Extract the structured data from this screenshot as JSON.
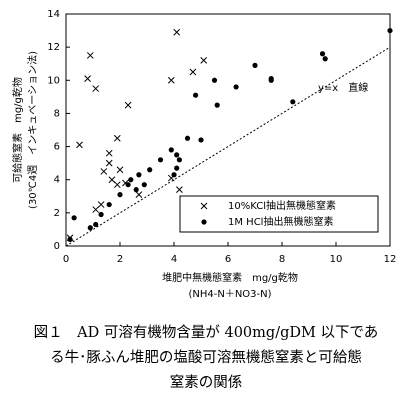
{
  "chart_data": {
    "type": "scatter",
    "xlabel": [
      "堆肥中無機態窒素　mg/g乾物",
      "(NH4-N＋NO3-N)"
    ],
    "ylabel": [
      "可給態窒素　mg/g乾物",
      "(30℃4週　インキュベーション法)"
    ],
    "annotation": "y=x　直線",
    "reference_line": "y=x",
    "xlim": [
      0,
      12
    ],
    "ylim": [
      0,
      14
    ],
    "xticks": [
      0,
      2,
      4,
      6,
      8,
      10,
      12
    ],
    "yticks": [
      0,
      2,
      4,
      6,
      8,
      10,
      12,
      14
    ],
    "legend": "lower right",
    "series": [
      {
        "name": "10%KCl抽出無機態窒素",
        "marker": "x",
        "color": "#000000",
        "x": [
          0.9,
          0.8,
          1.1,
          0.5,
          2.3,
          4.1,
          3.9,
          4.7,
          5.1,
          1.9,
          1.6,
          1.6,
          1.4,
          1.7,
          2.0,
          1.9,
          2.2,
          1.3,
          1.1,
          2.7,
          4.2,
          0.15,
          3.9
        ],
        "values": [
          11.5,
          10.1,
          9.5,
          6.1,
          8.5,
          12.9,
          10.0,
          10.5,
          11.2,
          6.5,
          5.6,
          5.0,
          4.5,
          4.0,
          4.6,
          3.7,
          3.8,
          2.5,
          2.2,
          3.1,
          3.4,
          0.5,
          4.1
        ]
      },
      {
        "name": "1M HCl抽出無機態窒素",
        "marker": "o",
        "color": "#000000",
        "x": [
          5.5,
          6.3,
          4.8,
          5.6,
          7.0,
          7.6,
          7.6,
          9.5,
          9.6,
          12.0,
          8.4,
          4.5,
          3.9,
          4.1,
          4.2,
          4.1,
          3.5,
          3.1,
          2.7,
          2.3,
          2.4,
          2.6,
          2.9,
          2.0,
          1.6,
          1.3,
          1.1,
          0.3,
          0.15,
          0.9,
          4.0,
          5.0
        ],
        "values": [
          10.0,
          9.6,
          9.1,
          8.5,
          10.9,
          10.1,
          10.0,
          11.6,
          11.3,
          13.0,
          8.7,
          6.5,
          5.8,
          5.5,
          5.2,
          4.7,
          5.2,
          4.6,
          4.3,
          3.7,
          4.0,
          3.4,
          3.7,
          3.1,
          2.5,
          1.9,
          1.3,
          1.7,
          0.4,
          1.1,
          4.3,
          6.4
        ]
      }
    ]
  },
  "caption": [
    "図１　AD 可溶有機物含量が 400mg/gDM 以下であ",
    "る牛･豚ふん堆肥の塩酸可溶無機態窒素と可給態",
    "窒素の関係"
  ]
}
